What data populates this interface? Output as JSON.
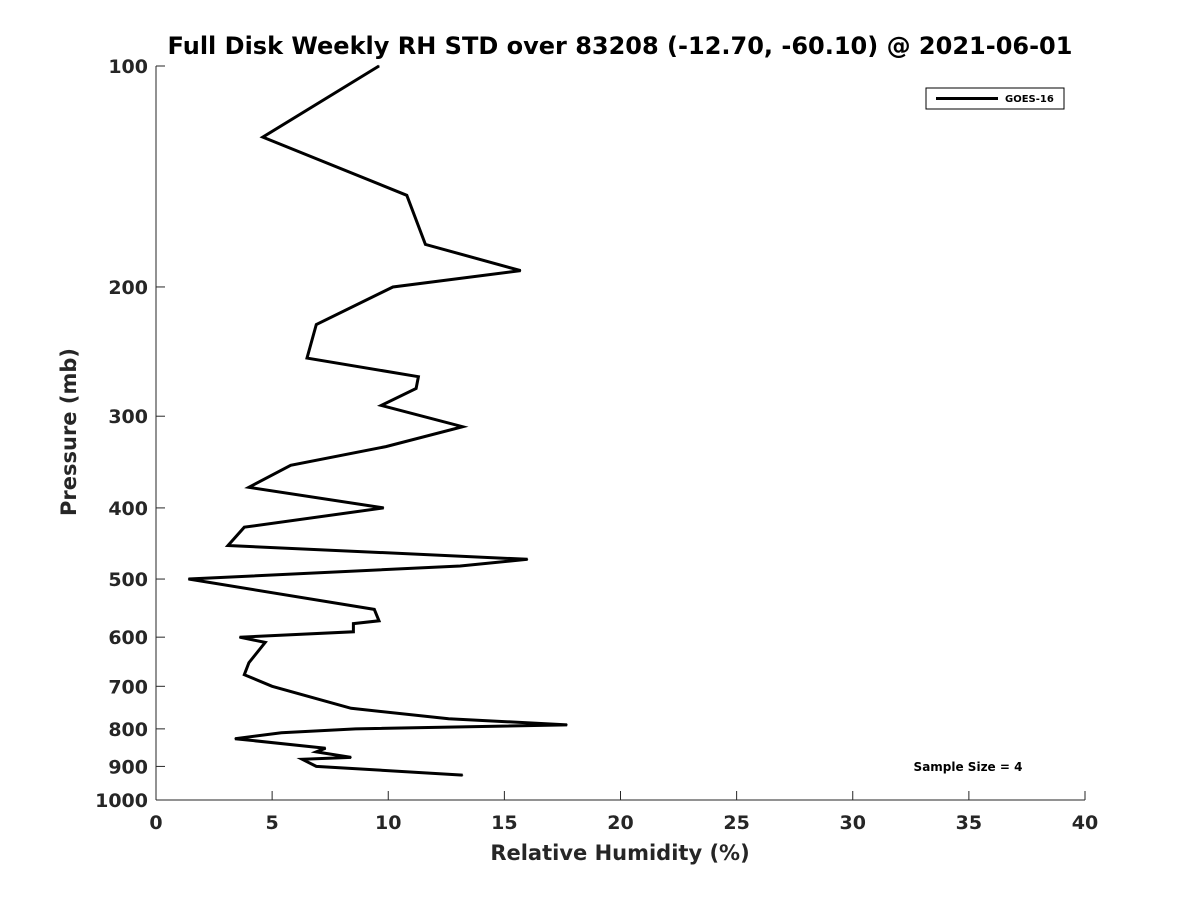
{
  "chart_data": {
    "type": "line",
    "title": "Full Disk Weekly RH STD over 83208 (-12.70, -60.10) @ 2021-06-01",
    "xlabel": "Relative Humidity (%)",
    "ylabel": "Pressure (mb)",
    "xlim": [
      0,
      40
    ],
    "ylim": [
      100,
      1000
    ],
    "y_scale": "log",
    "y_reversed": true,
    "x_ticks": [
      "0",
      "5",
      "10",
      "15",
      "20",
      "25",
      "30",
      "35",
      "40"
    ],
    "y_ticks": [
      "100",
      "200",
      "300",
      "400",
      "500",
      "600",
      "700",
      "800",
      "900",
      "1000"
    ],
    "grid": false,
    "legend_position": "top-right",
    "annotation": "Sample Size = 4",
    "series": [
      {
        "name": "GOES-16",
        "color": "#000000",
        "x": [
          9.6,
          4.6,
          10.8,
          11.6,
          15.7,
          10.2,
          6.9,
          6.5,
          11.3,
          11.2,
          9.7,
          13.2,
          9.9,
          5.8,
          4.0,
          9.8,
          3.8,
          3.1,
          16.0,
          13.1,
          1.4,
          9.4,
          9.6,
          8.5,
          8.5,
          3.6,
          4.7,
          4.0,
          3.8,
          5.0,
          8.4,
          12.6,
          17.7,
          8.6,
          5.4,
          3.4,
          7.3,
          6.9,
          8.4,
          6.3,
          6.9,
          13.2
        ],
        "y": [
          100,
          125,
          150,
          175,
          190,
          200,
          225,
          250,
          265,
          275,
          290,
          310,
          330,
          350,
          375,
          400,
          425,
          450,
          470,
          480,
          500,
          550,
          570,
          575,
          590,
          600,
          610,
          650,
          675,
          700,
          750,
          775,
          790,
          800,
          810,
          825,
          850,
          860,
          875,
          880,
          900,
          925
        ]
      }
    ]
  }
}
